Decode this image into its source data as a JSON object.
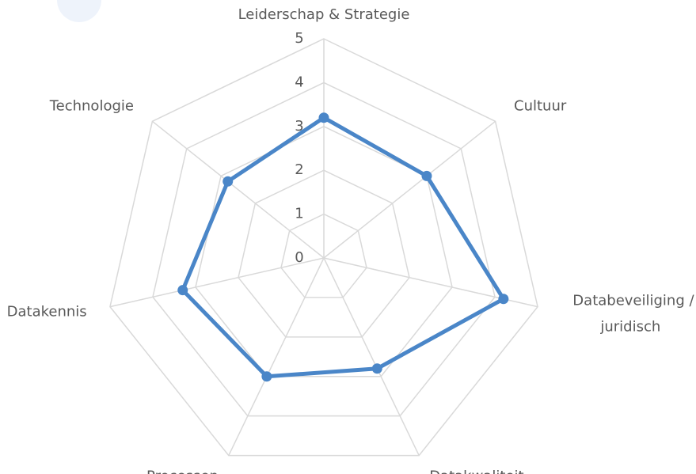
{
  "chart_data": {
    "type": "radar",
    "categories": [
      "Leiderschap & Strategie",
      "Cultuur",
      "Databeveiliging / juridisch",
      "Datakwaliteit",
      "Processen",
      "Datakennis",
      "Technologie"
    ],
    "values": [
      3.2,
      3.0,
      4.2,
      2.8,
      3.0,
      3.3,
      2.8
    ],
    "color": "#4a86c8",
    "rlim": [
      0,
      5
    ],
    "rticks": [
      0,
      1,
      2,
      3,
      4,
      5
    ],
    "grid": true
  }
}
